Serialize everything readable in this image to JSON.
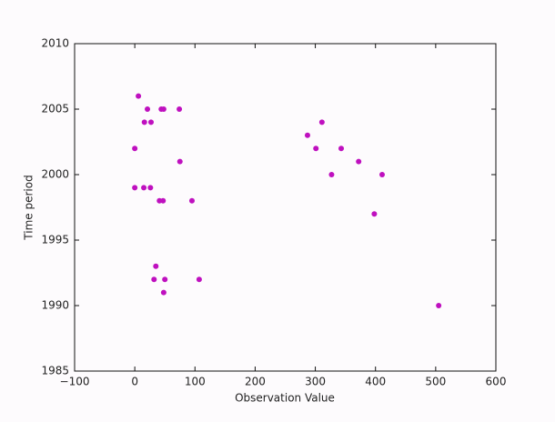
{
  "chart_data": {
    "type": "scatter",
    "xlabel": "Observation Value",
    "ylabel": "Time period",
    "x": [
      6,
      21,
      44,
      48,
      74,
      16,
      27,
      0,
      75,
      0,
      15,
      26,
      41,
      47,
      95,
      35,
      32,
      50,
      107,
      48,
      287,
      311,
      301,
      343,
      327,
      372,
      411,
      398,
      505
    ],
    "values": [
      2006,
      2005,
      2005,
      2005,
      2005,
      2004,
      2004,
      2002,
      2001,
      1999,
      1999,
      1999,
      1998,
      1998,
      1998,
      1993,
      1992,
      1992,
      1992,
      1991,
      2003,
      2004,
      2002,
      2002,
      2000,
      2001,
      2000,
      1997,
      1990
    ],
    "color": "#bf10bf",
    "xlim": [
      -100,
      600
    ],
    "xticks": [
      {
        "value": -100,
        "label": "−100"
      },
      0,
      100,
      200,
      300,
      400,
      500,
      600
    ],
    "ylim": [
      1985,
      2010
    ],
    "yticks": [
      1985,
      1990,
      1995,
      2000,
      2005,
      2010
    ]
  }
}
